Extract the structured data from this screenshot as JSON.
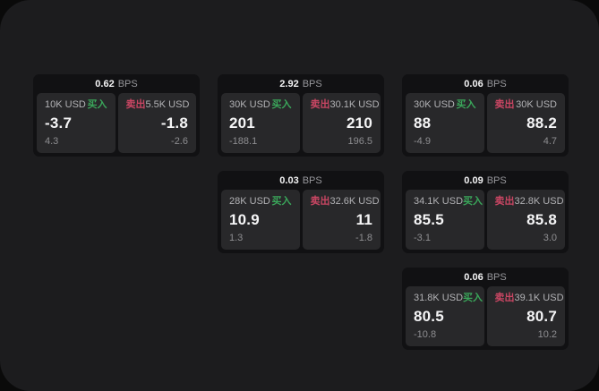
{
  "theme": {
    "bg": "#0a0a0a",
    "panel": "#1c1c1e",
    "card": "#111113",
    "tile": "#28282a",
    "text": "#f5f5f6",
    "label": "#b2b2b5",
    "dim": "#8e8e91",
    "unit": "#98989c",
    "green": "#3aa65a",
    "red": "#c94663"
  },
  "labels": {
    "buy": "买入",
    "sell": "卖出",
    "bps_unit": "BPS"
  },
  "cards": [
    {
      "col": 1,
      "row": 1,
      "bps": "0.62",
      "buy": {
        "amount": "10K USD",
        "value": "-3.7",
        "sub": "4.3"
      },
      "sell": {
        "amount": "5.5K USD",
        "value": "-1.8",
        "sub": "-2.6"
      }
    },
    {
      "col": 2,
      "row": 1,
      "bps": "2.92",
      "buy": {
        "amount": "30K USD",
        "value": "201",
        "sub": "-188.1"
      },
      "sell": {
        "amount": "30.1K USD",
        "value": "210",
        "sub": "196.5"
      }
    },
    {
      "col": 3,
      "row": 1,
      "bps": "0.06",
      "buy": {
        "amount": "30K USD",
        "value": "88",
        "sub": "-4.9"
      },
      "sell": {
        "amount": "30K USD",
        "value": "88.2",
        "sub": "4.7"
      }
    },
    {
      "col": 2,
      "row": 2,
      "bps": "0.03",
      "buy": {
        "amount": "28K USD",
        "value": "10.9",
        "sub": "1.3"
      },
      "sell": {
        "amount": "32.6K USD",
        "value": "11",
        "sub": "-1.8"
      }
    },
    {
      "col": 3,
      "row": 2,
      "bps": "0.09",
      "buy": {
        "amount": "34.1K USD",
        "value": "85.5",
        "sub": "-3.1"
      },
      "sell": {
        "amount": "32.8K USD",
        "value": "85.8",
        "sub": "3.0"
      }
    },
    {
      "col": 3,
      "row": 3,
      "bps": "0.06",
      "buy": {
        "amount": "31.8K USD",
        "value": "80.5",
        "sub": "-10.8"
      },
      "sell": {
        "amount": "39.1K USD",
        "value": "80.7",
        "sub": "10.2"
      }
    }
  ]
}
